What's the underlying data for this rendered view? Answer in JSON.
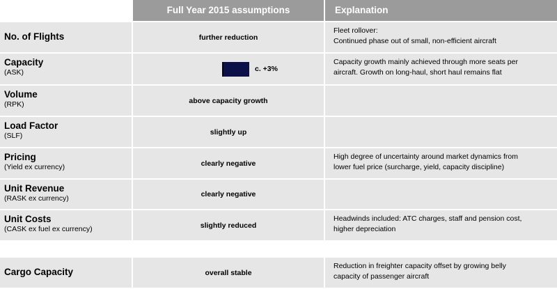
{
  "header": {
    "assumptions": "Full Year 2015 assumptions",
    "explanation": "Explanation"
  },
  "rows": [
    {
      "title": "No. of Flights",
      "sub": "",
      "value": "further reduction",
      "explanation": [
        "Fleet rollover:",
        "Continued phase out of small, non-efficient aircraft"
      ]
    },
    {
      "title": "Capacity",
      "sub": "(ASK)",
      "value": "c. +3%",
      "explanation": [
        "Capacity growth mainly achieved through more seats per",
        "aircraft. Growth on long-haul, short haul remains flat"
      ]
    },
    {
      "title": "Volume",
      "sub": "(RPK)",
      "value": "above capacity growth",
      "explanation": []
    },
    {
      "title": "Load Factor",
      "sub": "(SLF)",
      "value": "slightly up",
      "explanation": []
    },
    {
      "title": "Pricing",
      "sub": "(Yield ex currency)",
      "value": "clearly negative",
      "explanation": [
        "High degree of uncertainty around market dynamics from",
        "lower fuel price (surcharge, yield, capacity discipline)"
      ]
    },
    {
      "title": "Unit Revenue",
      "sub": "(RASK ex currency)",
      "value": "clearly negative",
      "explanation": []
    },
    {
      "title": "Unit Costs",
      "sub": "(CASK ex fuel ex currency)",
      "value": "slightly reduced",
      "explanation": [
        "Headwinds included: ATC charges, staff and pension cost,",
        "higher depreciation"
      ]
    },
    {
      "title": "Cargo Capacity",
      "sub": "",
      "value": "overall stable",
      "explanation": [
        "Reduction in freighter capacity offset by growing belly",
        "capacity of passenger aircraft"
      ]
    }
  ],
  "capacity_bar_color": "#0b1148"
}
